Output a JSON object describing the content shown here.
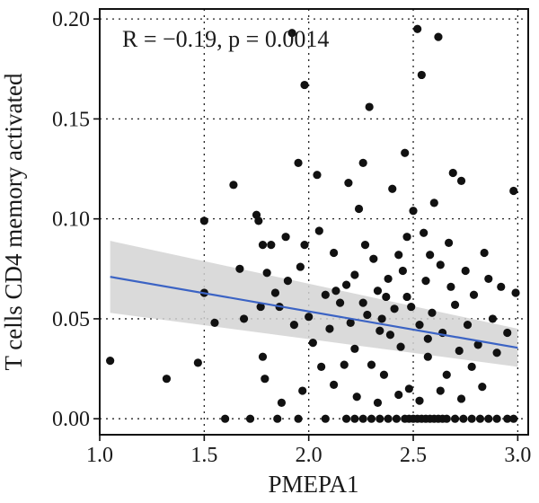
{
  "chart_data": {
    "type": "scatter",
    "xlabel": "PMEPA1",
    "ylabel": "T cells CD4 memory activated",
    "annotation": "R = −0.19, p = 0.0014",
    "xlim": [
      1.0,
      3.05
    ],
    "ylim": [
      -0.008,
      0.205
    ],
    "x_ticks": [
      "1.0",
      "1.5",
      "2.0",
      "2.5",
      "3.0"
    ],
    "y_ticks": [
      "0.00",
      "0.05",
      "0.10",
      "0.15",
      "0.20"
    ],
    "grid": true,
    "colors": {
      "points": "#111111",
      "fit_line": "#3b63c4",
      "confidence_band": "#d3d3d3"
    },
    "regression": {
      "x": [
        1.05,
        3.0
      ],
      "y": [
        0.071,
        0.0355
      ]
    },
    "confidence_band": {
      "x": [
        1.05,
        3.0
      ],
      "upper": [
        0.089,
        0.045
      ],
      "lower": [
        0.053,
        0.026
      ]
    },
    "points": [
      [
        1.05,
        0.029
      ],
      [
        1.32,
        0.02
      ],
      [
        1.47,
        0.028
      ],
      [
        1.5,
        0.099
      ],
      [
        1.5,
        0.063
      ],
      [
        1.55,
        0.048
      ],
      [
        1.6,
        0.0
      ],
      [
        1.64,
        0.117
      ],
      [
        1.67,
        0.075
      ],
      [
        1.69,
        0.05
      ],
      [
        1.75,
        0.102
      ],
      [
        1.76,
        0.099
      ],
      [
        1.77,
        0.056
      ],
      [
        1.78,
        0.087
      ],
      [
        1.78,
        0.031
      ],
      [
        1.79,
        0.02
      ],
      [
        1.8,
        0.073
      ],
      [
        1.82,
        0.087
      ],
      [
        1.84,
        0.063
      ],
      [
        1.86,
        0.056
      ],
      [
        1.87,
        0.008
      ],
      [
        1.89,
        0.091
      ],
      [
        1.9,
        0.069
      ],
      [
        1.92,
        0.193
      ],
      [
        1.93,
        0.047
      ],
      [
        1.95,
        0.128
      ],
      [
        1.96,
        0.076
      ],
      [
        1.97,
        0.014
      ],
      [
        1.98,
        0.167
      ],
      [
        1.98,
        0.087
      ],
      [
        2.0,
        0.051
      ],
      [
        2.02,
        0.038
      ],
      [
        2.04,
        0.122
      ],
      [
        2.05,
        0.094
      ],
      [
        2.06,
        0.026
      ],
      [
        2.08,
        0.062
      ],
      [
        2.1,
        0.045
      ],
      [
        2.12,
        0.083
      ],
      [
        2.13,
        0.064
      ],
      [
        2.15,
        0.058
      ],
      [
        2.17,
        0.027
      ],
      [
        2.19,
        0.118
      ],
      [
        2.2,
        0.048
      ],
      [
        2.22,
        0.072
      ],
      [
        2.24,
        0.105
      ],
      [
        2.26,
        0.128
      ],
      [
        2.28,
        0.052
      ],
      [
        2.29,
        0.156
      ],
      [
        2.31,
        0.08
      ],
      [
        2.33,
        0.064
      ],
      [
        2.34,
        0.044
      ],
      [
        2.36,
        0.022
      ],
      [
        2.38,
        0.07
      ],
      [
        2.4,
        0.115
      ],
      [
        2.41,
        0.055
      ],
      [
        2.43,
        0.082
      ],
      [
        2.44,
        0.036
      ],
      [
        2.46,
        0.133
      ],
      [
        2.47,
        0.061
      ],
      [
        2.48,
        0.015
      ],
      [
        2.5,
        0.104
      ],
      [
        2.52,
        0.195
      ],
      [
        2.53,
        0.047
      ],
      [
        2.54,
        0.172
      ],
      [
        2.55,
        0.093
      ],
      [
        2.56,
        0.069
      ],
      [
        2.57,
        0.031
      ],
      [
        2.59,
        0.053
      ],
      [
        2.6,
        0.108
      ],
      [
        2.62,
        0.191
      ],
      [
        2.63,
        0.077
      ],
      [
        2.64,
        0.043
      ],
      [
        2.66,
        0.022
      ],
      [
        2.67,
        0.088
      ],
      [
        2.69,
        0.123
      ],
      [
        2.7,
        0.057
      ],
      [
        2.72,
        0.034
      ],
      [
        2.73,
        0.119
      ],
      [
        2.75,
        0.074
      ],
      [
        2.76,
        0.047
      ],
      [
        2.78,
        0.026
      ],
      [
        2.79,
        0.062
      ],
      [
        2.81,
        0.037
      ],
      [
        2.84,
        0.083
      ],
      [
        2.86,
        0.07
      ],
      [
        2.88,
        0.05
      ],
      [
        2.9,
        0.033
      ],
      [
        2.92,
        0.066
      ],
      [
        2.95,
        0.043
      ],
      [
        2.98,
        0.114
      ],
      [
        2.99,
        0.063
      ],
      [
        2.22,
        0.035
      ],
      [
        2.26,
        0.058
      ],
      [
        2.35,
        0.05
      ],
      [
        2.45,
        0.074
      ],
      [
        2.3,
        0.027
      ],
      [
        2.39,
        0.042
      ],
      [
        2.49,
        0.056
      ],
      [
        2.58,
        0.082
      ],
      [
        2.68,
        0.066
      ],
      [
        2.18,
        0.067
      ],
      [
        2.27,
        0.087
      ],
      [
        2.37,
        0.061
      ],
      [
        2.47,
        0.091
      ],
      [
        2.57,
        0.04
      ],
      [
        2.12,
        0.017
      ],
      [
        2.23,
        0.011
      ],
      [
        2.33,
        0.008
      ],
      [
        2.43,
        0.012
      ],
      [
        2.53,
        0.009
      ],
      [
        2.63,
        0.014
      ],
      [
        2.73,
        0.01
      ],
      [
        2.83,
        0.016
      ],
      [
        1.72,
        0.0
      ],
      [
        1.85,
        0.0
      ],
      [
        1.95,
        0.0
      ],
      [
        2.08,
        0.0
      ],
      [
        2.18,
        0.0
      ],
      [
        2.22,
        0.0
      ],
      [
        2.26,
        0.0
      ],
      [
        2.3,
        0.0
      ],
      [
        2.34,
        0.0
      ],
      [
        2.38,
        0.0
      ],
      [
        2.42,
        0.0
      ],
      [
        2.46,
        0.0
      ],
      [
        2.48,
        0.0
      ],
      [
        2.5,
        0.0
      ],
      [
        2.52,
        0.0
      ],
      [
        2.54,
        0.0
      ],
      [
        2.56,
        0.0
      ],
      [
        2.58,
        0.0
      ],
      [
        2.6,
        0.0
      ],
      [
        2.62,
        0.0
      ],
      [
        2.64,
        0.0
      ],
      [
        2.66,
        0.0
      ],
      [
        2.7,
        0.0
      ],
      [
        2.74,
        0.0
      ],
      [
        2.78,
        0.0
      ],
      [
        2.82,
        0.0
      ],
      [
        2.86,
        0.0
      ],
      [
        2.9,
        0.0
      ],
      [
        2.95,
        0.0
      ],
      [
        2.98,
        0.0
      ]
    ]
  }
}
